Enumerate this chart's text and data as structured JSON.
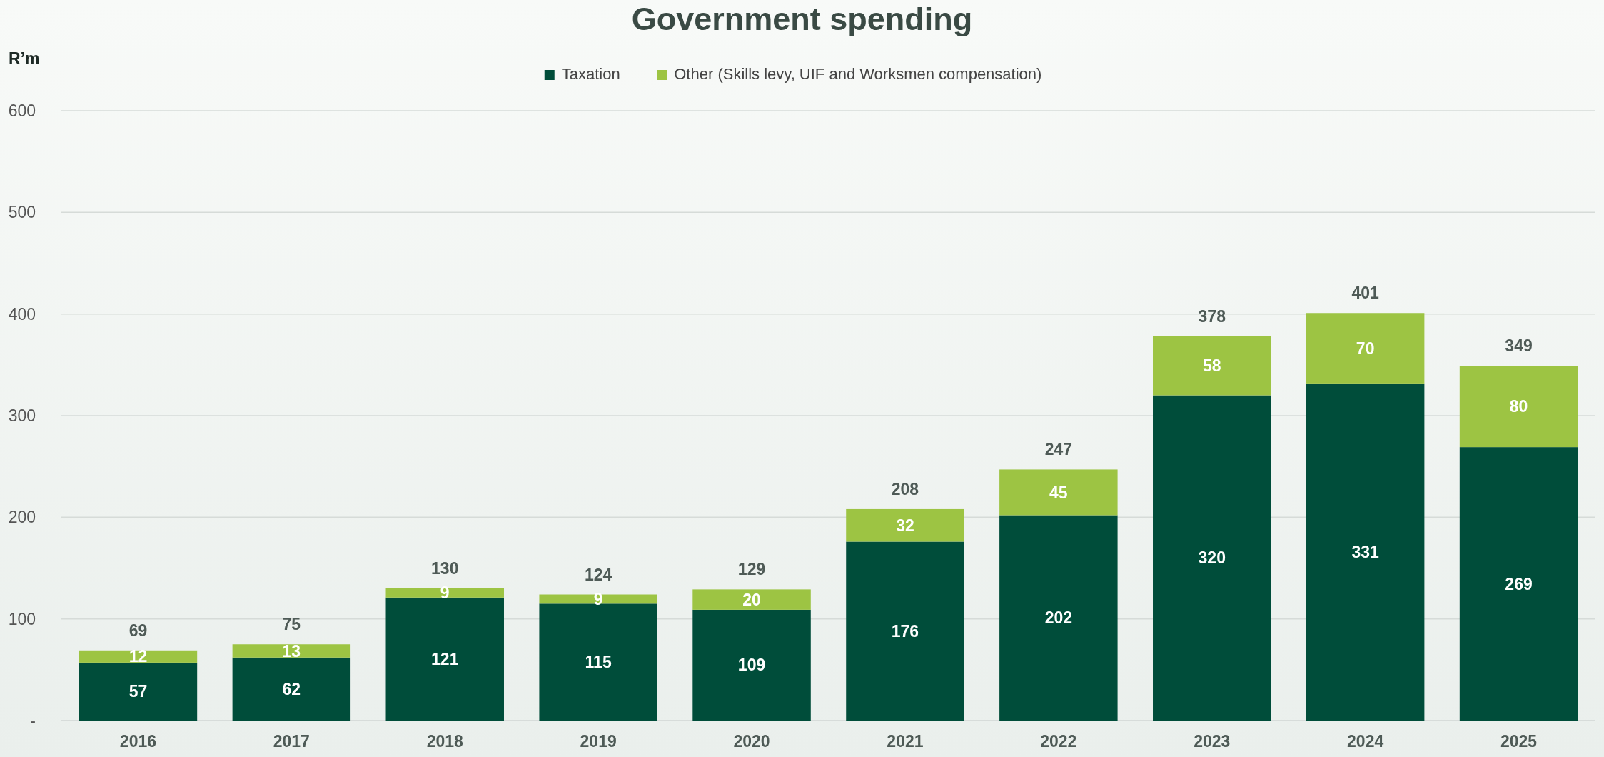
{
  "chart_data": {
    "type": "bar",
    "title": "Government spending",
    "ylabel": "R’m",
    "categories": [
      "2016",
      "2017",
      "2018",
      "2019",
      "2020",
      "2021",
      "2022",
      "2023",
      "2024",
      "2025"
    ],
    "stacked": true,
    "series": [
      {
        "name": "Taxation",
        "color": "#004d3a",
        "values": [
          57,
          62,
          121,
          115,
          109,
          176,
          202,
          320,
          331,
          269
        ]
      },
      {
        "name": "Other (Skills levy, UIF and Worksmen compensation)",
        "color": "#9dc443",
        "values": [
          12,
          13,
          9,
          9,
          20,
          32,
          45,
          58,
          70,
          80
        ]
      }
    ],
    "totals": [
      "69",
      "75",
      "130",
      "124",
      "129",
      "208",
      "247",
      "378",
      "401",
      "349"
    ],
    "data_labels": true,
    "ylim": [
      0,
      600
    ],
    "yticks": [
      {
        "value": 0,
        "label": "-"
      },
      100,
      200,
      300,
      400,
      500,
      600
    ],
    "grid": "y",
    "legend": "top"
  }
}
